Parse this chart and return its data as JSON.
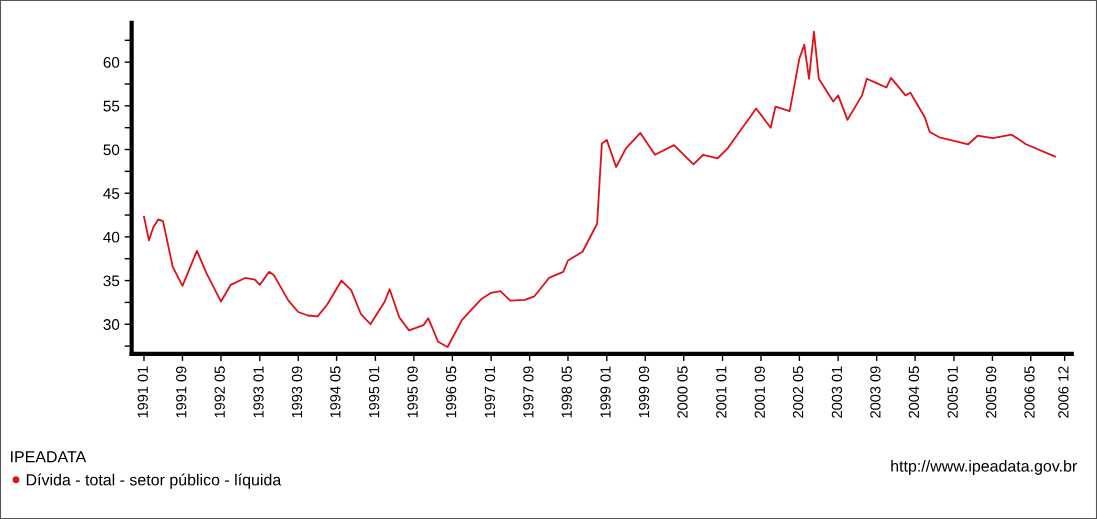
{
  "chart_data": {
    "type": "line",
    "x": [
      "1991-01",
      "1991-02",
      "1991-03",
      "1991-04",
      "1991-05",
      "1991-07",
      "1991-09",
      "1991-12",
      "1992-02",
      "1992-05",
      "1992-07",
      "1992-10",
      "1992-12",
      "1993-01",
      "1993-03",
      "1993-04",
      "1993-07",
      "1993-09",
      "1993-11",
      "1994-01",
      "1994-03",
      "1994-06",
      "1994-08",
      "1994-10",
      "1994-12",
      "1995-03",
      "1995-04",
      "1995-06",
      "1995-08",
      "1995-11",
      "1995-12",
      "1996-02",
      "1996-04",
      "1996-07",
      "1996-11",
      "1997-01",
      "1997-03",
      "1997-05",
      "1997-08",
      "1997-10",
      "1998-01",
      "1998-04",
      "1998-05",
      "1998-08",
      "1998-11",
      "1998-12",
      "1999-01",
      "1999-03",
      "1999-05",
      "1999-08",
      "1999-11",
      "2000-03",
      "2000-07",
      "2000-09",
      "2000-12",
      "2001-02",
      "2001-04",
      "2001-07",
      "2001-08",
      "2001-11",
      "2001-12",
      "2002-03",
      "2002-05",
      "2002-06",
      "2002-07",
      "2002-08",
      "2002-09",
      "2002-12",
      "2003-01",
      "2003-03",
      "2003-06",
      "2003-07",
      "2003-09",
      "2003-11",
      "2003-12",
      "2004-03",
      "2004-04",
      "2004-07",
      "2004-08",
      "2004-10",
      "2005-01",
      "2005-04",
      "2005-06",
      "2005-09",
      "2006-01",
      "2006-04",
      "2006-10"
    ],
    "series": [
      {
        "name": "Dívida - total - setor público - líquida",
        "color": "#e0101a",
        "values": [
          42.3,
          39.6,
          41.1,
          42.0,
          41.8,
          36.6,
          34.4,
          38.4,
          35.8,
          32.6,
          34.5,
          35.3,
          35.1,
          34.5,
          36.0,
          35.6,
          32.7,
          31.4,
          31.0,
          30.9,
          32.2,
          35.0,
          33.9,
          31.2,
          30.0,
          32.6,
          34.0,
          30.8,
          29.3,
          29.9,
          30.7,
          28.0,
          27.4,
          30.5,
          32.9,
          33.6,
          33.8,
          32.7,
          32.8,
          33.2,
          35.3,
          36.0,
          37.3,
          38.3,
          41.5,
          50.7,
          51.1,
          48.0,
          50.1,
          51.9,
          49.4,
          50.5,
          48.3,
          49.4,
          49.0,
          50.1,
          51.6,
          53.9,
          54.7,
          52.5,
          54.9,
          54.4,
          60.4,
          62.0,
          58.1,
          63.5,
          58.1,
          55.5,
          56.2,
          53.4,
          56.2,
          58.1,
          57.6,
          57.1,
          58.2,
          56.2,
          56.5,
          53.7,
          52.0,
          51.4,
          51.0,
          50.6,
          51.6,
          51.3,
          51.7,
          50.6,
          49.2
        ]
      }
    ],
    "xlim": [
      "1990-10-15",
      "2007-01-15"
    ],
    "xticks": [
      {
        "value": "1991-01",
        "label": "1991 01"
      },
      {
        "value": "1991-09",
        "label": "1991 09"
      },
      {
        "value": "1992-05",
        "label": "1992 05"
      },
      {
        "value": "1993-01",
        "label": "1993 01"
      },
      {
        "value": "1993-09",
        "label": "1993 09"
      },
      {
        "value": "1994-05",
        "label": "1994 05"
      },
      {
        "value": "1995-01",
        "label": "1995 01"
      },
      {
        "value": "1995-09",
        "label": "1995 09"
      },
      {
        "value": "1996-05",
        "label": "1996 05"
      },
      {
        "value": "1997-01",
        "label": "1997 01"
      },
      {
        "value": "1997-09",
        "label": "1997 09"
      },
      {
        "value": "1998-05",
        "label": "1998 05"
      },
      {
        "value": "1999-01",
        "label": "1999 01"
      },
      {
        "value": "1999-09",
        "label": "1999 09"
      },
      {
        "value": "2000-05",
        "label": "2000 05"
      },
      {
        "value": "2001-01",
        "label": "2001 01"
      },
      {
        "value": "2001-09",
        "label": "2001 09"
      },
      {
        "value": "2002-05",
        "label": "2002 05"
      },
      {
        "value": "2003-01",
        "label": "2003 01"
      },
      {
        "value": "2003-09",
        "label": "2003 09"
      },
      {
        "value": "2004-05",
        "label": "2004 05"
      },
      {
        "value": "2005-01",
        "label": "2005 01"
      },
      {
        "value": "2005-09",
        "label": "2005 09"
      },
      {
        "value": "2006-05",
        "label": "2006 05"
      },
      {
        "value": "2006-12",
        "label": "2006 12"
      }
    ],
    "ylim": [
      26.6,
      64.5
    ],
    "yticks": [
      {
        "value": 27.5,
        "label": null
      },
      30,
      {
        "value": 32.5,
        "label": null
      },
      35,
      {
        "value": 37.5,
        "label": null
      },
      40,
      {
        "value": 42.5,
        "label": null
      },
      45,
      {
        "value": 47.5,
        "label": null
      },
      50,
      {
        "value": 52.5,
        "label": null
      },
      55,
      {
        "value": 57.5,
        "label": null
      },
      60,
      {
        "value": 62.5,
        "label": null
      }
    ],
    "legend_title": "IPEADATA",
    "legend": "bottom left",
    "annotations": [
      "http://www.ipeadata.gov.br"
    ],
    "grid": false,
    "marker": "none",
    "line_style": "solid"
  }
}
